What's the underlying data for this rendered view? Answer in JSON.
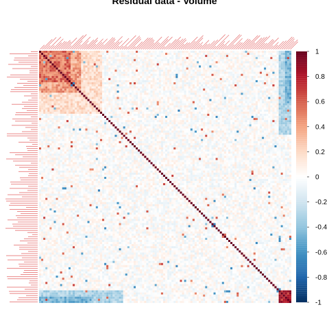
{
  "chart_data": {
    "type": "heatmap",
    "title": "Residual data - Volume",
    "matrix_size": 120,
    "row_labels_visible": "tiny red variable names (illegible)",
    "col_labels_visible": "tiny red variable names (illegible)",
    "value_range": [
      -1,
      1
    ],
    "diagonal_value": 1,
    "colorbar": {
      "ticks": [
        1,
        0.8,
        0.6,
        0.4,
        0.2,
        0,
        -0.2,
        -0.4,
        -0.6,
        -0.8,
        -1
      ],
      "tick_labels": [
        "1",
        "0.8",
        "0.6",
        "0.4",
        "0.2",
        "0",
        "-0.2",
        "-0.4",
        "-0.6",
        "-0.8",
        "-1"
      ],
      "colors": [
        "#67001f",
        "#b2182b",
        "#d6604d",
        "#f4a582",
        "#fddbc7",
        "#ffffff",
        "#d1e5f0",
        "#92c5de",
        "#4393c3",
        "#2166ac",
        "#053061"
      ],
      "position": "right"
    },
    "structure": {
      "top_left_block_correlation": 0.55,
      "last_rows_vs_first_block": -0.45,
      "last_cols_vs_first_block": -0.35,
      "background": "mostly near zero"
    }
  }
}
